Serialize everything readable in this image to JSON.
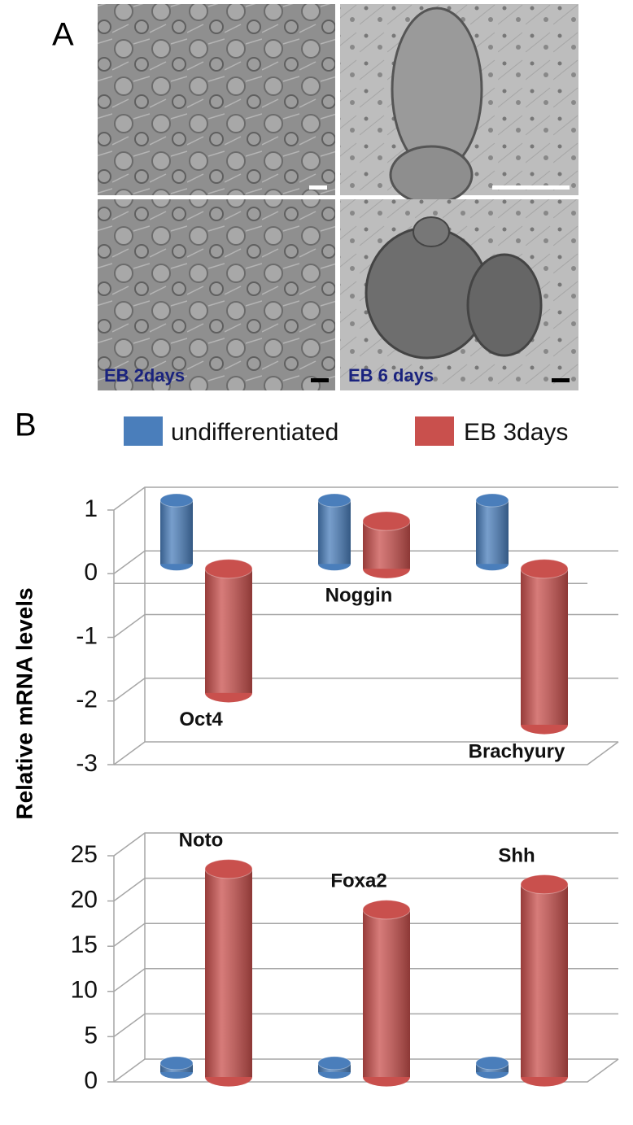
{
  "panel_labels": [
    "A",
    "B"
  ],
  "image_labels": [
    "EB 2days",
    "EB 6 days"
  ],
  "chart_data": [
    {
      "type": "bar",
      "ylabel": "Relative mRNA levels",
      "categories": [
        "Oct4",
        "Noggin",
        "Brachyury"
      ],
      "series": [
        {
          "name": "undifferentiated",
          "color": "#4a7ebb",
          "values": [
            1,
            1,
            1
          ]
        },
        {
          "name": "EB 3days",
          "color": "#c9504d",
          "values": [
            -1.95,
            0.75,
            -2.45
          ]
        }
      ],
      "ylim": [
        -3,
        1
      ],
      "yticks": [
        -3,
        -2,
        -1,
        0,
        1
      ],
      "grid": true
    },
    {
      "type": "bar",
      "categories": [
        "Noto",
        "Foxa2",
        "Shh"
      ],
      "series": [
        {
          "color": "#4a7ebb",
          "values": [
            1,
            1,
            1
          ]
        },
        {
          "color": "#c9504d",
          "values": [
            23,
            18.5,
            21.3
          ]
        }
      ],
      "ylim": [
        0,
        25
      ],
      "yticks": [
        0,
        5,
        10,
        15,
        20,
        25
      ],
      "grid": true
    }
  ]
}
